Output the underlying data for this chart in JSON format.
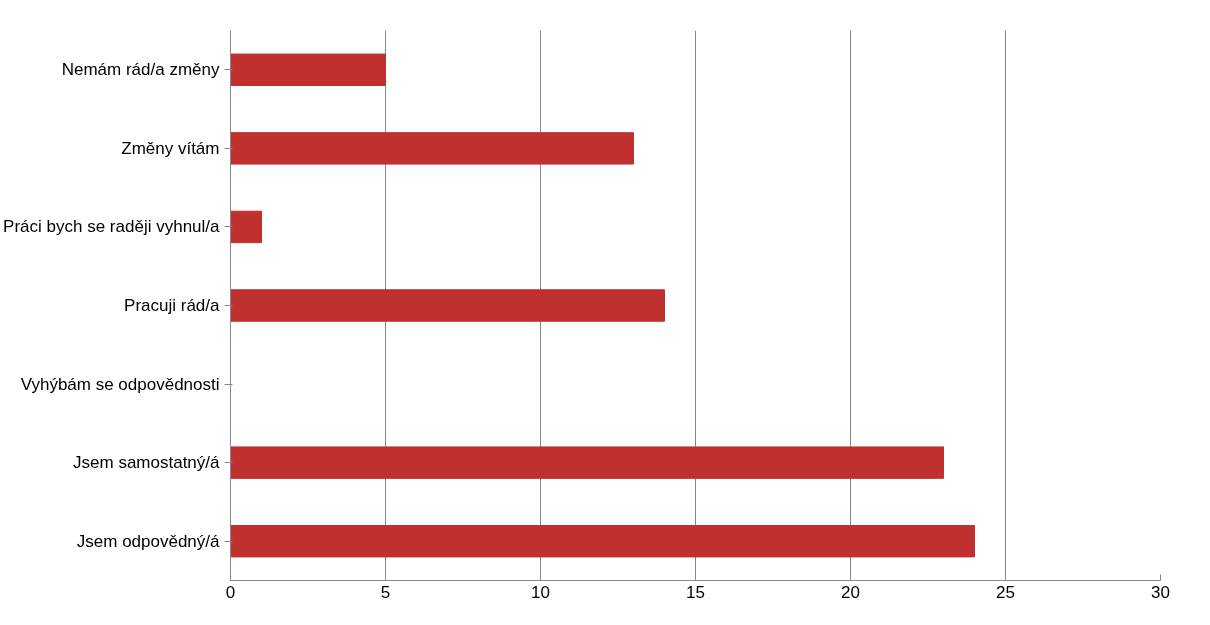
{
  "chart_data": {
    "type": "bar",
    "orientation": "horizontal",
    "categories": [
      "Nemám rád/a změny",
      "Změny vítám",
      "Práci bych se raději vyhnul/a",
      "Pracuji rád/a",
      "Vyhýbám se odpovědnosti",
      "Jsem samostatný/á",
      "Jsem odpovědný/á"
    ],
    "values": [
      5,
      13,
      1,
      14,
      0,
      23,
      24
    ],
    "color": "#c0302f",
    "xlim": [
      0,
      30
    ],
    "xticks": [
      0,
      5,
      10,
      15,
      20,
      25,
      30
    ],
    "grid": "x"
  }
}
